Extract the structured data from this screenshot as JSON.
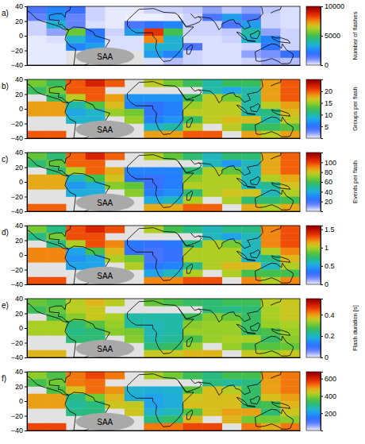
{
  "chart_data": [
    {
      "type": "heatmap",
      "title": "a)",
      "x": [
        -110,
        -90,
        -70,
        -50,
        -30,
        -10,
        10,
        30,
        50,
        70,
        90,
        110,
        130,
        150
      ],
      "y": [
        35,
        25,
        15,
        5,
        -5,
        -15,
        -25,
        -35
      ],
      "cells": [
        [
          1500,
          2500,
          1800,
          300,
          100,
          100,
          300,
          300,
          400,
          800,
          400,
          800,
          400,
          200
        ],
        [
          1200,
          2800,
          1200,
          300,
          100,
          50,
          50,
          100,
          300,
          1500,
          3000,
          1500,
          300,
          200
        ],
        [
          300,
          3500,
          1200,
          200,
          100,
          1500,
          2000,
          2500,
          300,
          300,
          1500,
          3000,
          300,
          200
        ],
        [
          300,
          800,
          5500,
          2000,
          300,
          3000,
          8500,
          5000,
          300,
          300,
          400,
          4000,
          800,
          300
        ],
        [
          100,
          200,
          3500,
          2500,
          200,
          200,
          7500,
          3500,
          200,
          200,
          300,
          3500,
          2500,
          300
        ],
        [
          100,
          100,
          2500,
          3000,
          200,
          200,
          3500,
          3500,
          1500,
          200,
          200,
          300,
          2000,
          300
        ],
        [
          100,
          100,
          null,
          null,
          null,
          null,
          3000,
          2500,
          300,
          200,
          200,
          800,
          1000,
          1800
        ],
        [
          100,
          100,
          null,
          null,
          null,
          null,
          200,
          500,
          300,
          200,
          200,
          300,
          700,
          500
        ]
      ],
      "xlim": [
        -120,
        160
      ],
      "ylim": [
        -40,
        40
      ],
      "yticks": [
        {
          "value": -40,
          "label": "−40"
        },
        {
          "value": -20,
          "label": "−20"
        },
        0,
        20,
        40
      ],
      "tick_labels": "y",
      "colorbar": {
        "range": [
          0,
          10000
        ],
        "ticks": [
          0,
          5000,
          10000
        ],
        "label": "Number of flashes"
      },
      "annotations": [
        "SAA"
      ]
    },
    {
      "type": "heatmap",
      "title": "b)",
      "x": [
        -110,
        -90,
        -70,
        -50,
        -30,
        -10,
        10,
        30,
        50,
        70,
        90,
        110,
        130,
        150
      ],
      "y": [
        35,
        25,
        15,
        5,
        -5,
        -15,
        -25,
        -35
      ],
      "cells": [
        [
          14,
          12,
          20,
          22,
          20,
          null,
          16,
          14,
          12,
          10,
          12,
          12,
          18,
          20
        ],
        [
          12,
          14,
          20,
          20,
          null,
          null,
          null,
          null,
          null,
          10,
          8,
          10,
          18,
          20
        ],
        [
          null,
          12,
          16,
          20,
          18,
          7,
          7,
          7,
          12,
          16,
          14,
          10,
          18,
          20
        ],
        [
          18,
          18,
          10,
          13,
          17,
          6,
          5,
          6,
          15,
          16,
          16,
          10,
          16,
          18
        ],
        [
          18,
          18,
          8,
          9,
          15,
          14,
          5,
          6,
          16,
          16,
          16,
          10,
          11,
          17
        ],
        [
          null,
          null,
          9,
          9,
          null,
          15,
          6,
          7,
          12,
          16,
          17,
          17,
          10,
          16
        ],
        [
          null,
          null,
          null,
          null,
          null,
          null,
          9,
          10,
          16,
          null,
          16,
          12,
          12,
          13
        ],
        [
          20,
          20,
          null,
          null,
          null,
          null,
          18,
          18,
          20,
          20,
          null,
          18,
          16,
          18
        ]
      ],
      "xlim": [
        -120,
        160
      ],
      "ylim": [
        -40,
        40
      ],
      "yticks": [
        {
          "value": -40,
          "label": "−40"
        },
        {
          "value": -20,
          "label": "−20"
        },
        0,
        20,
        40
      ],
      "tick_labels": "y",
      "colorbar": {
        "range": [
          0,
          25
        ],
        "ticks": [
          5,
          10,
          15,
          20
        ],
        "label": "Groups per flash"
      },
      "annotations": [
        "SAA"
      ]
    },
    {
      "type": "heatmap",
      "title": "c)",
      "x": [
        -110,
        -90,
        -70,
        -50,
        -30,
        -10,
        10,
        30,
        50,
        70,
        90,
        110,
        130,
        150
      ],
      "y": [
        35,
        25,
        15,
        5,
        -5,
        -15,
        -25,
        -35
      ],
      "cells": [
        [
          65,
          55,
          95,
          105,
          95,
          null,
          75,
          65,
          55,
          45,
          55,
          55,
          85,
          95
        ],
        [
          55,
          65,
          95,
          95,
          null,
          null,
          null,
          null,
          null,
          45,
          35,
          45,
          85,
          95
        ],
        [
          null,
          55,
          75,
          95,
          85,
          30,
          30,
          30,
          55,
          75,
          65,
          45,
          85,
          95
        ],
        [
          85,
          85,
          45,
          60,
          80,
          25,
          22,
          28,
          70,
          75,
          75,
          45,
          75,
          85
        ],
        [
          85,
          85,
          35,
          40,
          70,
          65,
          22,
          28,
          75,
          75,
          75,
          45,
          50,
          80
        ],
        [
          null,
          null,
          40,
          40,
          null,
          70,
          28,
          32,
          55,
          75,
          80,
          80,
          45,
          75
        ],
        [
          null,
          null,
          null,
          null,
          null,
          null,
          40,
          45,
          75,
          null,
          75,
          55,
          55,
          60
        ],
        [
          95,
          95,
          null,
          null,
          null,
          null,
          85,
          85,
          95,
          95,
          null,
          85,
          75,
          85
        ]
      ],
      "xlim": [
        -120,
        160
      ],
      "ylim": [
        -40,
        40
      ],
      "yticks": [
        {
          "value": -40,
          "label": "−40"
        },
        {
          "value": -20,
          "label": "−20"
        },
        0,
        20,
        40
      ],
      "tick_labels": "y",
      "colorbar": {
        "range": [
          0,
          120
        ],
        "ticks": [
          20,
          40,
          60,
          80,
          100
        ],
        "label": "Events per flash"
      },
      "annotations": [
        "SAA"
      ]
    },
    {
      "type": "heatmap",
      "title": "d)",
      "x": [
        -110,
        -90,
        -70,
        -50,
        -30,
        -10,
        10,
        30,
        50,
        70,
        90,
        110,
        130,
        150
      ],
      "y": [
        35,
        25,
        15,
        5,
        -5,
        -15,
        -25,
        -35
      ],
      "cells": [
        [
          0.9,
          0.7,
          1.3,
          1.4,
          1.3,
          null,
          1.0,
          0.8,
          0.7,
          0.6,
          0.7,
          0.7,
          1.2,
          1.3
        ],
        [
          0.7,
          0.9,
          1.3,
          1.3,
          null,
          null,
          null,
          null,
          null,
          0.6,
          0.5,
          0.6,
          1.2,
          1.3
        ],
        [
          null,
          0.7,
          1.0,
          1.3,
          1.2,
          0.35,
          0.3,
          0.35,
          0.7,
          1.0,
          0.9,
          0.6,
          1.2,
          1.3
        ],
        [
          1.2,
          1.2,
          0.5,
          0.8,
          1.1,
          0.3,
          0.25,
          0.3,
          1.0,
          1.0,
          1.0,
          0.6,
          1.0,
          1.2
        ],
        [
          1.2,
          1.2,
          0.45,
          0.5,
          1.0,
          0.9,
          0.25,
          0.3,
          1.0,
          1.0,
          1.0,
          0.6,
          0.7,
          1.1
        ],
        [
          null,
          null,
          0.5,
          0.5,
          null,
          1.0,
          0.35,
          0.4,
          0.7,
          1.0,
          1.1,
          1.1,
          0.6,
          1.0
        ],
        [
          null,
          null,
          null,
          null,
          null,
          null,
          0.5,
          0.6,
          1.0,
          null,
          1.0,
          0.8,
          0.8,
          0.8
        ],
        [
          1.3,
          1.3,
          null,
          null,
          null,
          null,
          1.2,
          1.2,
          1.3,
          1.3,
          null,
          1.2,
          1.0,
          1.2
        ]
      ],
      "xlim": [
        -120,
        160
      ],
      "ylim": [
        -40,
        40
      ],
      "yticks": [
        {
          "value": -40,
          "label": "−40"
        },
        {
          "value": -20,
          "label": "−20"
        },
        0,
        20,
        40
      ],
      "tick_labels": "y",
      "colorbar": {
        "range": [
          0,
          1.6
        ],
        "ticks": [
          0,
          0.5,
          1,
          1.5
        ]
      },
      "annotations": [
        "SAA"
      ]
    },
    {
      "type": "heatmap",
      "title": "e)",
      "x": [
        -110,
        -90,
        -70,
        -50,
        -30,
        -10,
        10,
        30,
        50,
        70,
        90,
        110,
        130,
        150
      ],
      "y": [
        35,
        25,
        15,
        5,
        -5,
        -15,
        -25,
        -35
      ],
      "cells": [
        [
          0.3,
          0.28,
          0.35,
          0.38,
          0.35,
          null,
          0.3,
          0.28,
          0.26,
          0.25,
          0.27,
          0.27,
          0.35,
          0.36
        ],
        [
          0.27,
          0.3,
          0.35,
          0.36,
          null,
          null,
          null,
          null,
          null,
          0.25,
          0.24,
          0.25,
          0.34,
          0.36
        ],
        [
          null,
          0.28,
          0.32,
          0.36,
          0.34,
          0.22,
          0.22,
          0.22,
          0.27,
          0.32,
          0.3,
          0.26,
          0.34,
          0.36
        ],
        [
          0.34,
          0.34,
          0.25,
          0.29,
          0.33,
          0.22,
          0.21,
          0.22,
          0.32,
          0.33,
          0.33,
          0.26,
          0.33,
          0.34
        ],
        [
          0.34,
          0.34,
          0.24,
          0.25,
          0.32,
          0.31,
          0.21,
          0.22,
          0.33,
          0.33,
          0.33,
          0.26,
          0.28,
          0.33
        ],
        [
          null,
          null,
          0.25,
          0.25,
          null,
          0.32,
          0.22,
          0.23,
          0.28,
          0.33,
          0.34,
          0.34,
          0.26,
          0.32
        ],
        [
          null,
          null,
          null,
          null,
          null,
          null,
          0.25,
          0.26,
          0.33,
          null,
          0.33,
          0.29,
          0.29,
          0.3
        ],
        [
          0.38,
          0.38,
          null,
          null,
          null,
          null,
          0.36,
          0.36,
          0.38,
          0.38,
          null,
          0.36,
          0.34,
          0.36
        ]
      ],
      "xlim": [
        -120,
        160
      ],
      "ylim": [
        -40,
        40
      ],
      "yticks": [
        {
          "value": -40,
          "label": "−40"
        },
        {
          "value": -20,
          "label": "−20"
        },
        0,
        20,
        40
      ],
      "tick_labels": "y",
      "colorbar": {
        "range": [
          0,
          0.55
        ],
        "ticks": [
          0,
          0.2,
          0.4
        ],
        "label": "Flash duration [s]"
      },
      "annotations": [
        "SAA"
      ]
    },
    {
      "type": "heatmap",
      "title": "f)",
      "x": [
        -110,
        -90,
        -70,
        -50,
        -30,
        -10,
        10,
        30,
        50,
        70,
        90,
        110,
        130,
        150
      ],
      "y": [
        35,
        25,
        15,
        5,
        -5,
        -15,
        -25,
        -35
      ],
      "cells": [
        [
          400,
          350,
          520,
          560,
          520,
          null,
          420,
          380,
          330,
          300,
          340,
          340,
          500,
          520
        ],
        [
          340,
          380,
          520,
          530,
          null,
          null,
          null,
          null,
          null,
          300,
          280,
          300,
          490,
          520
        ],
        [
          null,
          350,
          460,
          530,
          500,
          240,
          230,
          240,
          360,
          460,
          430,
          320,
          490,
          520
        ],
        [
          490,
          490,
          300,
          380,
          470,
          230,
          210,
          230,
          450,
          460,
          460,
          320,
          460,
          490
        ],
        [
          490,
          490,
          280,
          300,
          450,
          440,
          210,
          230,
          460,
          460,
          460,
          320,
          340,
          470
        ],
        [
          null,
          null,
          300,
          300,
          null,
          450,
          240,
          260,
          360,
          460,
          490,
          490,
          310,
          450
        ],
        [
          null,
          null,
          null,
          null,
          null,
          null,
          300,
          320,
          470,
          null,
          470,
          380,
          380,
          400
        ],
        [
          560,
          560,
          null,
          null,
          null,
          null,
          520,
          520,
          560,
          560,
          null,
          520,
          480,
          520
        ]
      ],
      "xlim": [
        -120,
        160
      ],
      "ylim": [
        -40,
        40
      ],
      "yticks": [
        {
          "value": -40,
          "label": "−40"
        },
        {
          "value": -20,
          "label": "−20"
        },
        0,
        20,
        40
      ],
      "tick_labels": "y",
      "colorbar": {
        "range": [
          0,
          680
        ],
        "ticks": [
          200,
          400,
          600
        ]
      },
      "annotations": [
        "SAA"
      ]
    }
  ]
}
